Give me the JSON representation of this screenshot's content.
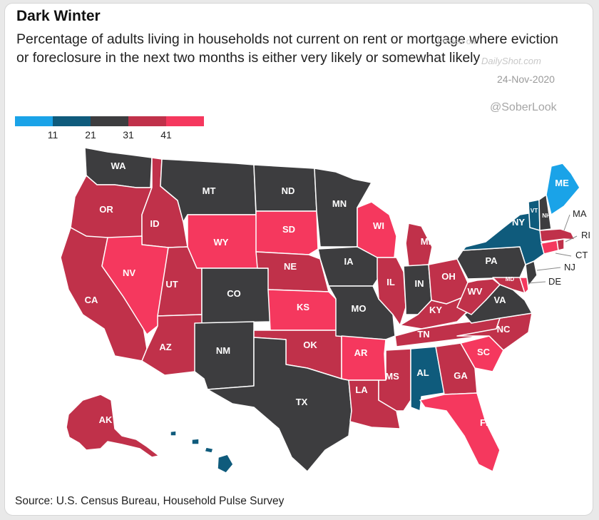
{
  "title": "Dark Winter",
  "subtitle": "Percentage of adults living in households not current on rent or mortgage where eviction or foreclosure in the next two months is either very likely or somewhat likely",
  "watermark": {
    "posted": "Posted on",
    "site": "DailyShot.com",
    "date": "24-Nov-2020"
  },
  "handle": "@SoberLook",
  "legend": {
    "ticks": [
      "11",
      "21",
      "31",
      "41"
    ],
    "colors": [
      "#1aa3e8",
      "#0f5b7c",
      "#3d3d3f",
      "#c0314a",
      "#f5385e"
    ]
  },
  "source": "Source: U.S. Census Bureau, Household Pulse Survey",
  "colors": {
    "light_blue": "#1aa3e8",
    "dark_blue": "#0f5b7c",
    "dark_gray": "#3d3d3f",
    "crimson": "#c0314a",
    "pink": "#f5385e"
  },
  "states": {
    "WA": "WA",
    "OR": "OR",
    "CA": "CA",
    "ID": "ID",
    "NV": "NV",
    "MT": "MT",
    "WY": "WY",
    "UT": "UT",
    "AZ": "AZ",
    "CO": "CO",
    "NM": "NM",
    "ND": "ND",
    "SD": "SD",
    "NE": "NE",
    "KS": "KS",
    "OK": "OK",
    "TX": "TX",
    "MN": "MN",
    "IA": "IA",
    "MO": "MO",
    "AR": "AR",
    "LA": "LA",
    "WI": "WI",
    "IL": "IL",
    "MI": "MI",
    "IN": "IN",
    "OH": "OH",
    "KY": "KY",
    "TN": "TN",
    "MS": "MS",
    "AL": "AL",
    "GA": "GA",
    "FL": "FL",
    "SC": "SC",
    "NC": "NC",
    "VA": "VA",
    "WV": "WV",
    "PA": "PA",
    "NY": "NY",
    "MD": "MD",
    "VT": "VT",
    "NH": "NH",
    "ME": "ME",
    "AK": "AK",
    "MA": "MA",
    "RI": "RI",
    "CT": "CT",
    "NJ": "NJ",
    "DE": "DE"
  }
}
